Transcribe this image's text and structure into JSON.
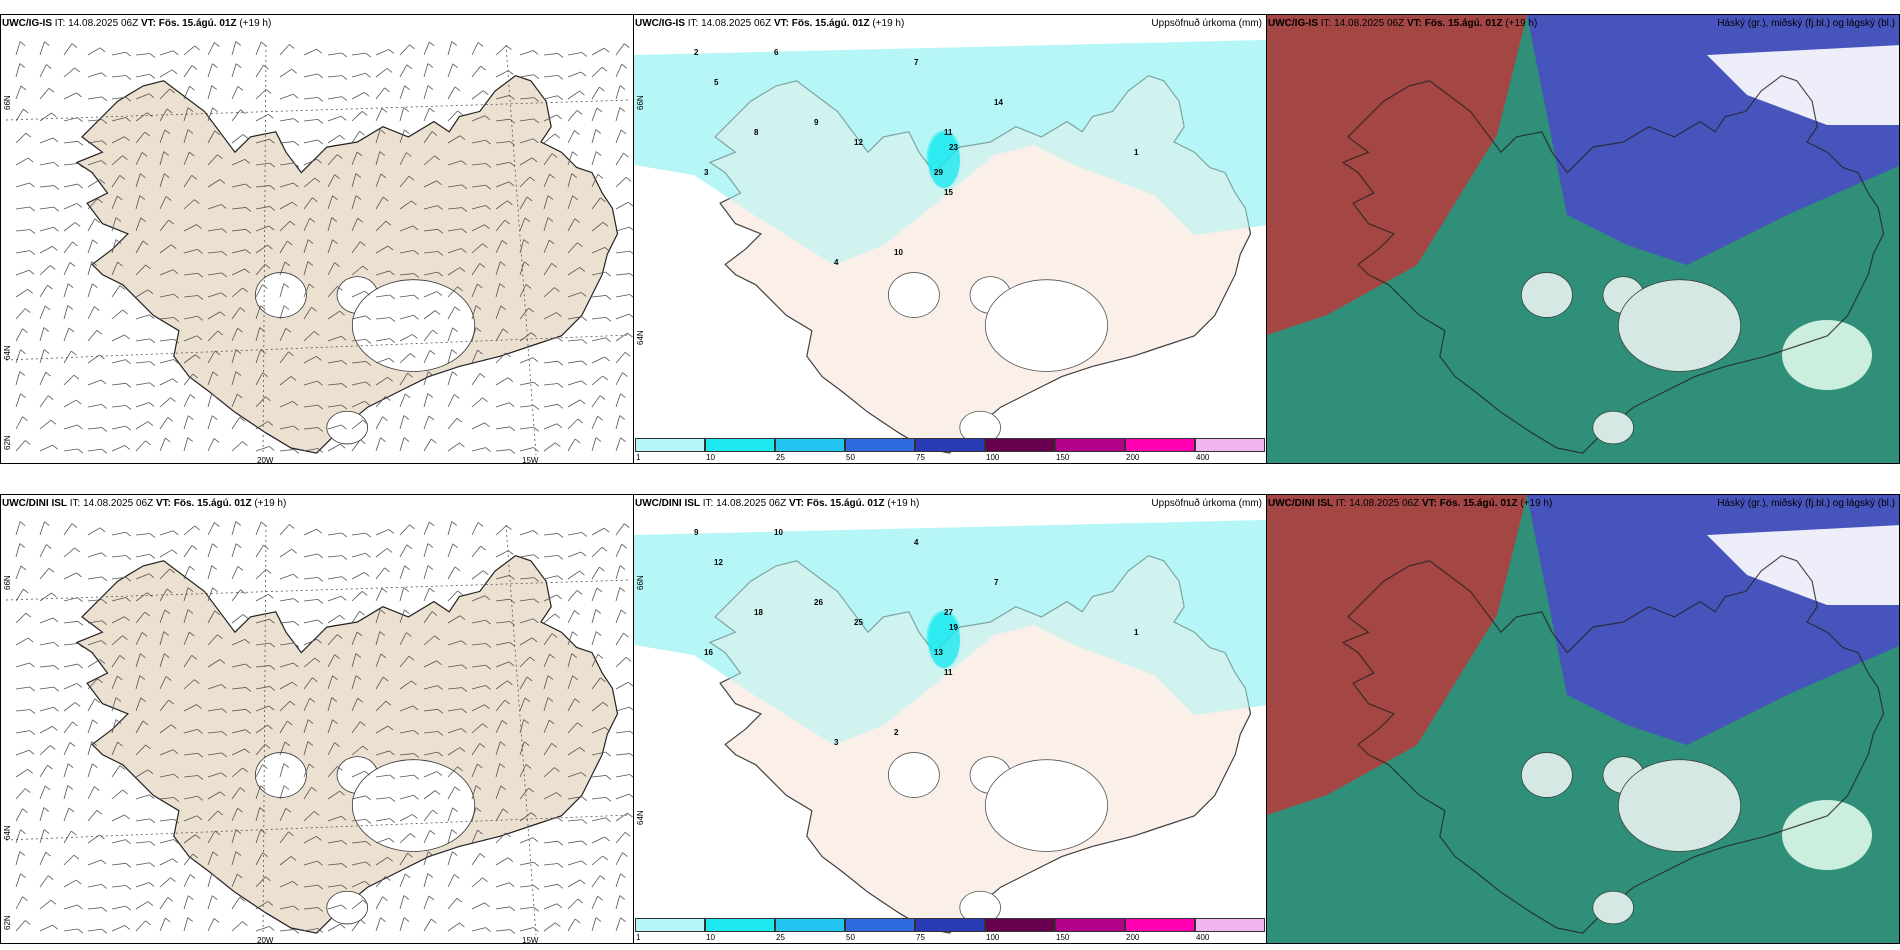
{
  "panels": [
    {
      "id": "p1",
      "model": "UWC/IG-IS",
      "it": "IT: 14.08.2025 06Z",
      "vt": "VT: Fös. 15.ágú. 01Z",
      "lead": "(+19 h)",
      "unit": "",
      "type": "wind"
    },
    {
      "id": "p2",
      "model": "UWC/IG-IS",
      "it": "IT: 14.08.2025 06Z",
      "vt": "VT: Fös. 15.ágú. 01Z",
      "lead": "(+19 h)",
      "unit": "Uppsöfnuð úrkoma (mm)",
      "type": "precip"
    },
    {
      "id": "p3",
      "model": "UWC/IG-IS",
      "it": "IT: 14.08.2025 06Z",
      "vt": "VT: Fös. 15.ágú. 01Z",
      "lead": "(+19 h)",
      "unit": "Háský (gr.), miðský (fj.bl.) og lágský (bl.)",
      "type": "cloud"
    },
    {
      "id": "p4",
      "model": "UWC/DINI ISL",
      "it": "IT: 14.08.2025 06Z",
      "vt": "VT: Fös. 15.ágú. 01Z",
      "lead": "(+19 h)",
      "unit": "",
      "type": "wind"
    },
    {
      "id": "p5",
      "model": "UWC/DINI ISL",
      "it": "IT: 14.08.2025 06Z",
      "vt": "VT: Fös. 15.ágú. 01Z",
      "lead": "(+19 h)",
      "unit": "Uppsöfnuð úrkoma (mm)",
      "type": "precip"
    },
    {
      "id": "p6",
      "model": "UWC/DINI ISL",
      "it": "IT: 14.08.2025 06Z",
      "vt": "VT: Fös. 15.ágú. 01Z",
      "lead": "(+19 h)",
      "unit": "Háský (gr.), miðský (fj.bl.) og lágský (bl.)",
      "type": "cloud"
    }
  ],
  "axis": {
    "lon1": "20W",
    "lon2": "15W",
    "lat1": "66N",
    "lat2": "64N",
    "lat3": "62N"
  },
  "legend": {
    "labels": [
      "1",
      "10",
      "25",
      "50",
      "75",
      "100",
      "150",
      "200",
      "400"
    ],
    "colors": [
      "#b7f6f6",
      "#1ee8f0",
      "#22c4f0",
      "#2e6bde",
      "#2b3bb8",
      "#6a0050",
      "#b5008c",
      "#ff00b0",
      "#f2b4f0"
    ]
  },
  "colors": {
    "land": "#ece0d0",
    "land_precip": "#fbeee6",
    "precip_light": "#b7f6f6",
    "precip_med": "#1ee8f0",
    "cloud_low": "#2f8f78",
    "cloud_high": "#b83a3a",
    "cloud_mid": "#4a4ac8"
  },
  "precip_labels_top": [
    "2",
    "5",
    "6",
    "3",
    "8",
    "9",
    "12",
    "11",
    "23",
    "29",
    "15",
    "14",
    "7",
    "4",
    "10",
    "1"
  ],
  "precip_labels_bottom": [
    "9",
    "12",
    "10",
    "16",
    "18",
    "26",
    "25",
    "27",
    "19",
    "13",
    "11",
    "7",
    "4",
    "3",
    "2",
    "1"
  ]
}
